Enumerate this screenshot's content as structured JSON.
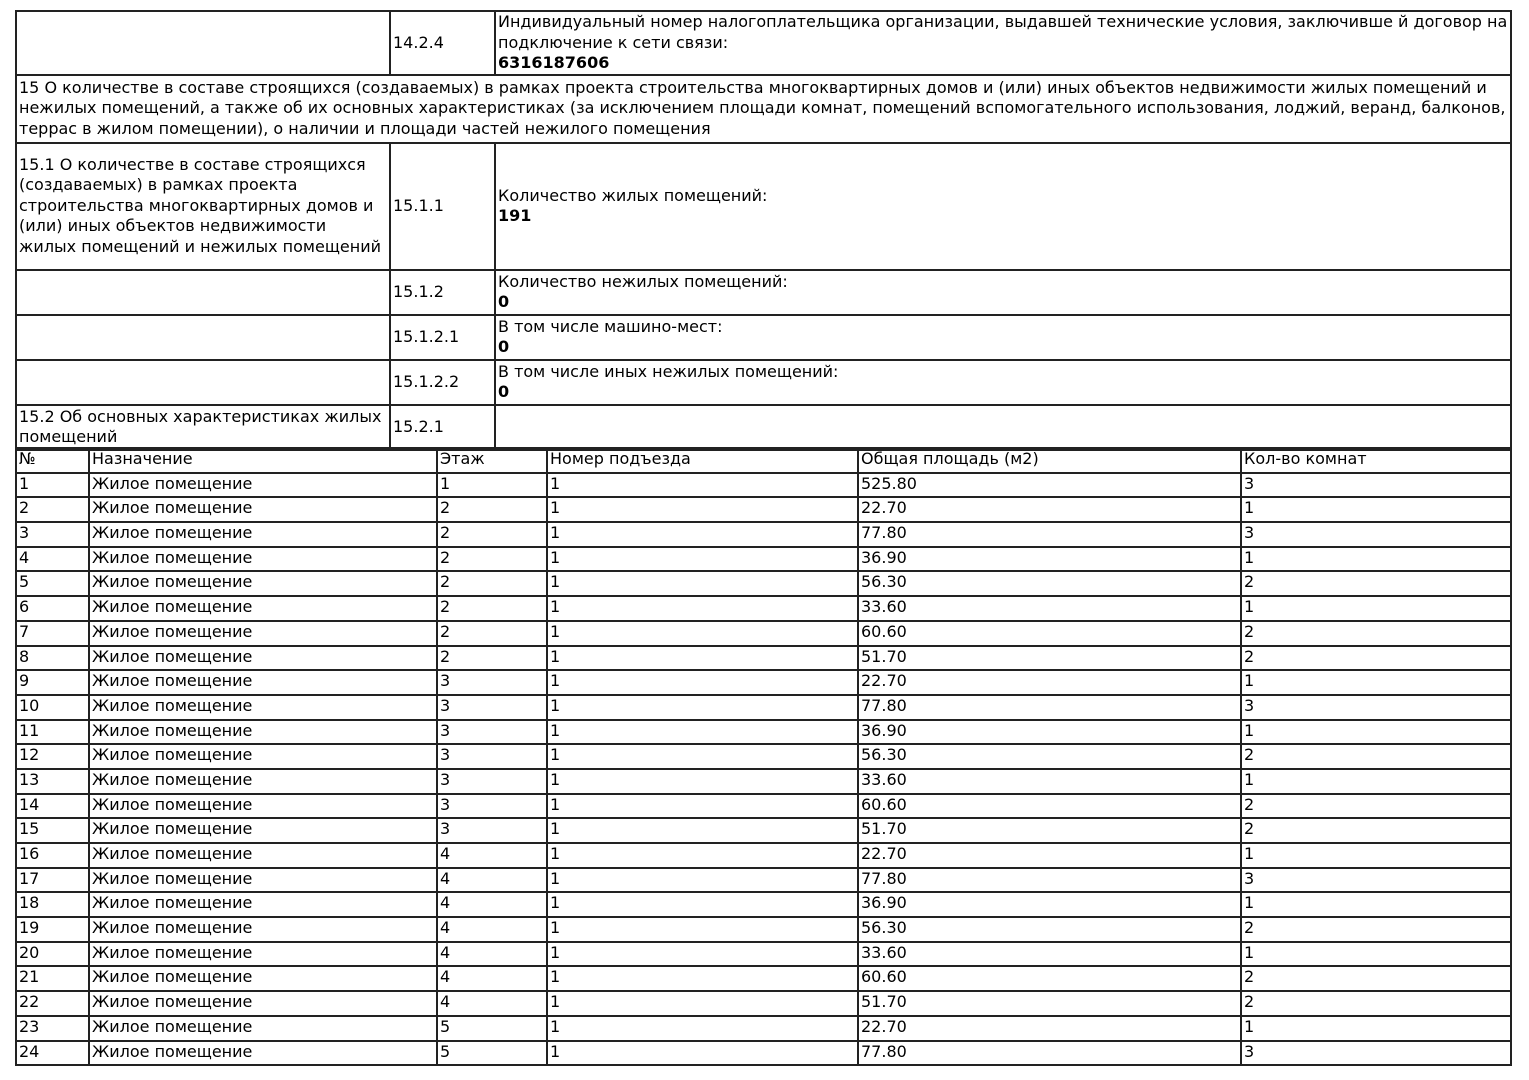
{
  "section_14": {
    "code": "14.2.4",
    "label": "Индивидуальный номер налогоплательщика организации, выдавшей технические условия, заключивше й договор на подключение к сети связи:",
    "value": "6316187606"
  },
  "section_15": {
    "title": "15 О количестве в составе строящихся (создаваемых) в рамках проекта строительства многоквартирных домов и (или) иных объектов недвижимости жилых помещений и нежилых помещений, а также об их основных характеристиках (за исключением площади комнат, помещений вспомогательного использования, лоджий, веранд, балконов, террас в жилом помещении), о наличии и площади частей нежилого помещения",
    "sub_15_1": "15.1 О количестве в составе строящихся (создаваемых) в рамках проекта строительства многоквартирных домов и (или) иных объектов недвижимости жилых помещений и нежилых помещений",
    "items": [
      {
        "code": "15.1.1",
        "label": "Количество жилых помещений:",
        "value": "191"
      },
      {
        "code": "15.1.2",
        "label": "Количество нежилых помещений:",
        "value": "0"
      },
      {
        "code": "15.1.2.1",
        "label": "В том числе машино-мест:",
        "value": "0"
      },
      {
        "code": "15.1.2.2",
        "label": "В том числе иных нежилых помещений:",
        "value": "0"
      }
    ],
    "sub_15_2": "15.2 Об основных характеристиках жилых помещений",
    "code_15_2_1": "15.2.1"
  },
  "rooms_table": {
    "headers": [
      "№",
      "Назначение",
      "Этаж",
      "Номер подъезда",
      "Общая площадь (м2)",
      "Кол-во комнат"
    ],
    "rows": [
      [
        "1",
        "Жилое помещение",
        "1",
        "1",
        "525.80",
        "3"
      ],
      [
        "2",
        "Жилое помещение",
        "2",
        "1",
        "22.70",
        "1"
      ],
      [
        "3",
        "Жилое помещение",
        "2",
        "1",
        "77.80",
        "3"
      ],
      [
        "4",
        "Жилое помещение",
        "2",
        "1",
        "36.90",
        "1"
      ],
      [
        "5",
        "Жилое помещение",
        "2",
        "1",
        "56.30",
        "2"
      ],
      [
        "6",
        "Жилое помещение",
        "2",
        "1",
        "33.60",
        "1"
      ],
      [
        "7",
        "Жилое помещение",
        "2",
        "1",
        "60.60",
        "2"
      ],
      [
        "8",
        "Жилое помещение",
        "2",
        "1",
        "51.70",
        "2"
      ],
      [
        "9",
        "Жилое помещение",
        "3",
        "1",
        "22.70",
        "1"
      ],
      [
        "10",
        "Жилое помещение",
        "3",
        "1",
        "77.80",
        "3"
      ],
      [
        "11",
        "Жилое помещение",
        "3",
        "1",
        "36.90",
        "1"
      ],
      [
        "12",
        "Жилое помещение",
        "3",
        "1",
        "56.30",
        "2"
      ],
      [
        "13",
        "Жилое помещение",
        "3",
        "1",
        "33.60",
        "1"
      ],
      [
        "14",
        "Жилое помещение",
        "3",
        "1",
        "60.60",
        "2"
      ],
      [
        "15",
        "Жилое помещение",
        "3",
        "1",
        "51.70",
        "2"
      ],
      [
        "16",
        "Жилое помещение",
        "4",
        "1",
        "22.70",
        "1"
      ],
      [
        "17",
        "Жилое помещение",
        "4",
        "1",
        "77.80",
        "3"
      ],
      [
        "18",
        "Жилое помещение",
        "4",
        "1",
        "36.90",
        "1"
      ],
      [
        "19",
        "Жилое помещение",
        "4",
        "1",
        "56.30",
        "2"
      ],
      [
        "20",
        "Жилое помещение",
        "4",
        "1",
        "33.60",
        "1"
      ],
      [
        "21",
        "Жилое помещение",
        "4",
        "1",
        "60.60",
        "2"
      ],
      [
        "22",
        "Жилое помещение",
        "4",
        "1",
        "51.70",
        "2"
      ],
      [
        "23",
        "Жилое помещение",
        "5",
        "1",
        "22.70",
        "1"
      ],
      [
        "24",
        "Жилое помещение",
        "5",
        "1",
        "77.80",
        "3"
      ]
    ]
  }
}
